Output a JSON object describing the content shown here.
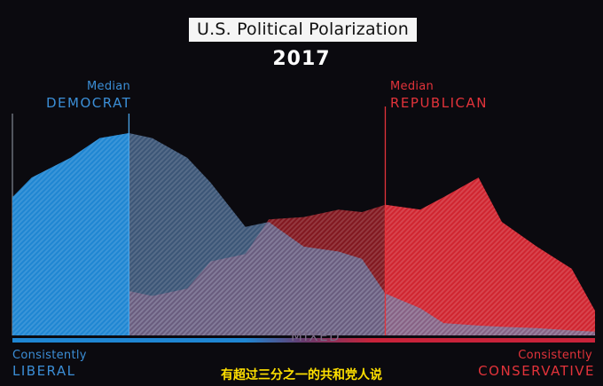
{
  "chart_data": {
    "type": "area",
    "title": "U.S. Political Polarization",
    "subtitle": "2017",
    "x_axis_left_label": [
      "Consistently",
      "LIBERAL"
    ],
    "x_axis_center_label": "MIXED",
    "x_axis_right_label": [
      "Consistently",
      "CONSERVATIVE"
    ],
    "x": [
      0,
      0.033,
      0.1,
      0.15,
      0.2,
      0.24,
      0.3,
      0.34,
      0.4,
      0.44,
      0.5,
      0.56,
      0.6,
      0.64,
      0.7,
      0.74,
      0.8,
      0.84,
      0.9,
      0.96,
      1.0
    ],
    "series": [
      {
        "name": "Democrat",
        "color": "#1f86d2",
        "values": [
          0.56,
          0.64,
          0.72,
          0.8,
          0.82,
          0.8,
          0.72,
          0.62,
          0.44,
          0.46,
          0.36,
          0.34,
          0.31,
          0.17,
          0.11,
          0.05,
          0.04,
          0.035,
          0.03,
          0.02,
          0.015
        ]
      },
      {
        "name": "Republican",
        "color": "#d02530",
        "values": [
          0.02,
          0.03,
          0.06,
          0.16,
          0.18,
          0.16,
          0.19,
          0.3,
          0.33,
          0.47,
          0.48,
          0.51,
          0.5,
          0.53,
          0.51,
          0.56,
          0.64,
          0.46,
          0.36,
          0.27,
          0.1
        ]
      }
    ],
    "median_markers": [
      {
        "series": "Democrat",
        "label_top": "Median",
        "label_bottom": "DEMOCRAT",
        "x": 0.2
      },
      {
        "series": "Republican",
        "label_top": "Median",
        "label_bottom": "REPUBLICAN",
        "x": 0.64
      }
    ],
    "xlim": [
      0,
      1
    ],
    "ylim": [
      0,
      1
    ],
    "grid": false,
    "legend": "none"
  },
  "caption": "有超过三分之一的共和党人说"
}
